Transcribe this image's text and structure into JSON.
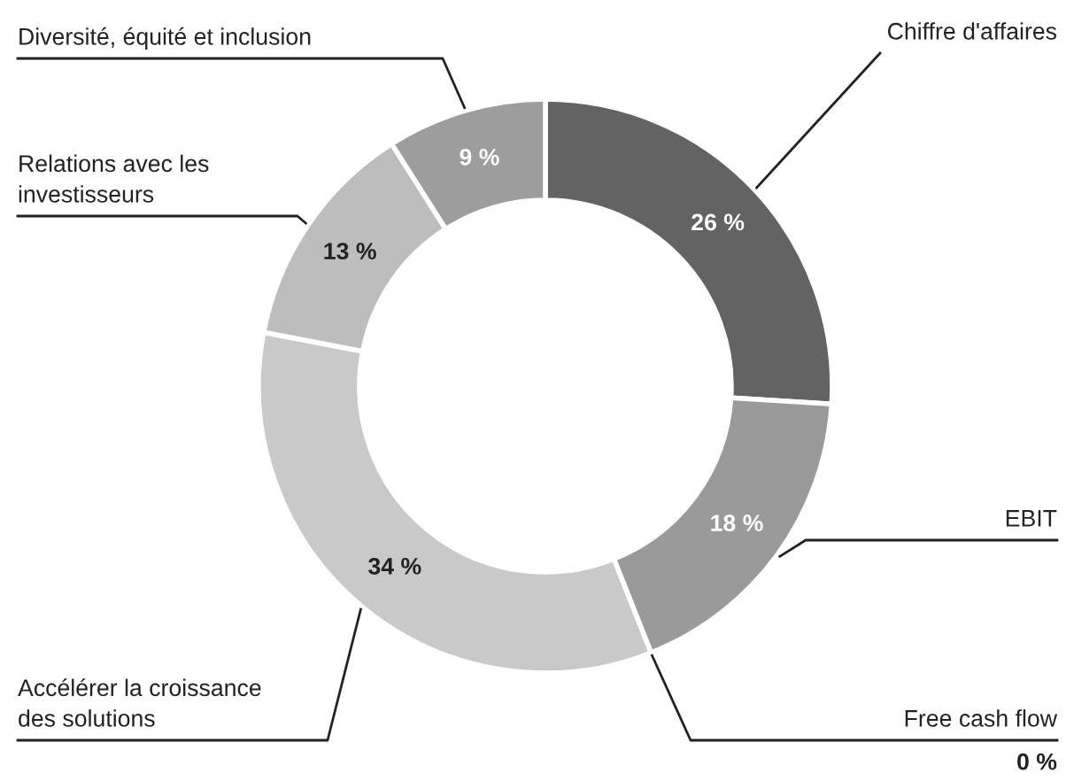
{
  "chart_data": {
    "type": "donut",
    "categories": [
      "Chiffre d'affaires",
      "EBIT",
      "Free cash flow",
      "Accélérer la croissance\ndes solutions",
      "Relations avec les\ninvestisseurs",
      "Diversité, équité et inclusion"
    ],
    "values": [
      26,
      18,
      0,
      34,
      13,
      9
    ],
    "value_labels": [
      "26 %",
      "18 %",
      "0 %",
      "34 %",
      "13 %",
      "9 %"
    ],
    "colors": [
      "#636363",
      "#9a9a9a",
      "#7f7f7f",
      "#c9c9c9",
      "#bdbdbd",
      "#9d9d9d"
    ]
  }
}
